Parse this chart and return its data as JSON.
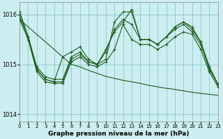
{
  "title": "Graphe pression niveau de la mer (hPa)",
  "background_color": "#cdeef0",
  "grid_color": "#7fbfc4",
  "line_color": "#1a5c1a",
  "xlim": [
    0,
    23
  ],
  "ylim": [
    1013.85,
    1016.25
  ],
  "yticks": [
    1014,
    1015,
    1016
  ],
  "xticks": [
    0,
    1,
    2,
    3,
    4,
    5,
    6,
    7,
    8,
    9,
    10,
    11,
    12,
    13,
    14,
    15,
    16,
    17,
    18,
    19,
    20,
    21,
    22,
    23
  ],
  "series": [
    [
      1016.05,
      1015.55,
      1014.9,
      1014.7,
      1014.65,
      1015.15,
      1015.25,
      1015.35,
      1015.1,
      1015.0,
      1015.3,
      1015.65,
      1015.85,
      1016.1,
      1015.5,
      1015.5,
      1015.4,
      1015.55,
      1015.75,
      1015.85,
      1015.75,
      1015.45,
      1014.95,
      1014.6
    ],
    [
      1016.05,
      1015.55,
      1014.9,
      1014.7,
      1014.65,
      1014.65,
      1015.1,
      1015.2,
      1015.05,
      1015.0,
      1015.1,
      1015.85,
      1016.05,
      1016.05,
      1015.5,
      1015.5,
      1015.4,
      1015.55,
      1015.75,
      1015.85,
      1015.7,
      1015.45,
      1014.95,
      1014.6
    ],
    [
      1015.95,
      1015.55,
      1014.95,
      1014.75,
      1014.7,
      1014.7,
      1015.15,
      1015.25,
      1015.05,
      1015.0,
      1015.25,
      1015.7,
      1015.9,
      1015.8,
      1015.5,
      1015.5,
      1015.4,
      1015.55,
      1015.7,
      1015.8,
      1015.65,
      1015.4,
      1014.9,
      1014.6
    ],
    [
      1015.9,
      1015.5,
      1014.85,
      1014.65,
      1014.62,
      1014.62,
      1015.05,
      1015.15,
      1015.0,
      1014.95,
      1015.05,
      1015.3,
      1015.8,
      1015.5,
      1015.4,
      1015.4,
      1015.3,
      1015.4,
      1015.55,
      1015.65,
      1015.6,
      1015.3,
      1014.85,
      1014.55
    ]
  ],
  "trend_line": [
    1015.9,
    1015.75,
    1015.6,
    1015.45,
    1015.3,
    1015.15,
    1015.0,
    1014.95,
    1014.88,
    1014.82,
    1014.76,
    1014.72,
    1014.68,
    1014.65,
    1014.62,
    1014.58,
    1014.55,
    1014.52,
    1014.5,
    1014.47,
    1014.44,
    1014.42,
    1014.4,
    1014.38
  ]
}
